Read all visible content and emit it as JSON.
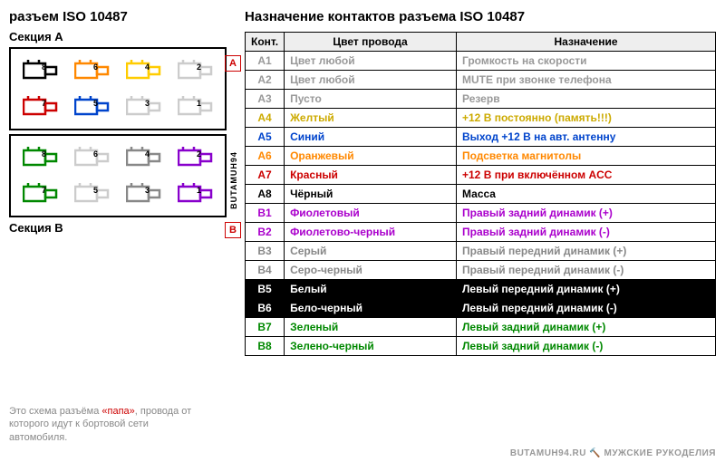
{
  "left_title": "разъем ISO 10487",
  "section_a_label": "Секция A",
  "section_b_label": "Секция B",
  "watermark_side": "BUTAMUH94",
  "watermark_bottom": "BUTAMUH94.RU 🔨 МУЖСКИЕ РУКОДЕЛИЯ",
  "footnote_pre": "Это схема разъёма ",
  "footnote_red": "«папа»",
  "footnote_post": ", провода от которого идут к бортовой сети автомобиля.",
  "right_title": "Назначение контактов разъема ISO 10487",
  "headers": {
    "pin": "Конт.",
    "color": "Цвет провода",
    "purpose": "Назначение"
  },
  "section_markers": {
    "a": "A",
    "b": "B"
  },
  "pins_a": [
    {
      "num": "8",
      "color": "#000000"
    },
    {
      "num": "6",
      "color": "#ff8800"
    },
    {
      "num": "4",
      "color": "#ffcc00"
    },
    {
      "num": "2",
      "color": "#cccccc"
    },
    {
      "num": "7",
      "color": "#cc0000"
    },
    {
      "num": "5",
      "color": "#0044cc"
    },
    {
      "num": "3",
      "color": "#cccccc"
    },
    {
      "num": "1",
      "color": "#cccccc"
    }
  ],
  "pins_b": [
    {
      "num": "8",
      "color": "#008800"
    },
    {
      "num": "6",
      "color": "#cccccc"
    },
    {
      "num": "4",
      "color": "#888888"
    },
    {
      "num": "2",
      "color": "#8800cc"
    },
    {
      "num": "7",
      "color": "#008800"
    },
    {
      "num": "5",
      "color": "#cccccc"
    },
    {
      "num": "3",
      "color": "#888888"
    },
    {
      "num": "1",
      "color": "#8800cc"
    }
  ],
  "rows": [
    {
      "pin": "A1",
      "color_text": "Цвет любой",
      "purpose": "Громкость на скорости",
      "text_color": "#999999",
      "bg": "#ffffff"
    },
    {
      "pin": "A2",
      "color_text": "Цвет любой",
      "purpose": "MUTE при звонке телефона",
      "text_color": "#999999",
      "bg": "#ffffff"
    },
    {
      "pin": "A3",
      "color_text": "Пусто",
      "purpose": "Резерв",
      "text_color": "#999999",
      "bg": "#ffffff"
    },
    {
      "pin": "A4",
      "color_text": "Желтый",
      "purpose": "+12 В постоянно (память!!!)",
      "text_color": "#ccaa00",
      "bg": "#ffffff"
    },
    {
      "pin": "A5",
      "color_text": "Синий",
      "purpose": "Выход +12 В на авт. антенну",
      "text_color": "#0044cc",
      "bg": "#ffffff"
    },
    {
      "pin": "A6",
      "color_text": "Оранжевый",
      "purpose": "Подсветка магнитолы",
      "text_color": "#ff8800",
      "bg": "#ffffff"
    },
    {
      "pin": "A7",
      "color_text": "Красный",
      "purpose": "+12 В при включённом ACC",
      "text_color": "#cc0000",
      "bg": "#ffffff"
    },
    {
      "pin": "A8",
      "color_text": "Чёрный",
      "purpose": "Масса",
      "text_color": "#000000",
      "bg": "#ffffff"
    },
    {
      "pin": "B1",
      "color_text": "Фиолетовый",
      "purpose": "Правый задний динамик (+)",
      "text_color": "#aa00cc",
      "bg": "#ffffff"
    },
    {
      "pin": "B2",
      "color_text": "Фиолетово-черный",
      "purpose": "Правый задний динамик (-)",
      "text_color": "#aa00cc",
      "bg": "#ffffff"
    },
    {
      "pin": "B3",
      "color_text": "Серый",
      "purpose": "Правый передний динамик (+)",
      "text_color": "#888888",
      "bg": "#ffffff"
    },
    {
      "pin": "B4",
      "color_text": "Серо-черный",
      "purpose": "Правый передний динамик (-)",
      "text_color": "#888888",
      "bg": "#ffffff"
    },
    {
      "pin": "B5",
      "color_text": "Белый",
      "purpose": "Левый передний динамик (+)",
      "text_color": "#ffffff",
      "bg": "#000000"
    },
    {
      "pin": "B6",
      "color_text": "Бело-черный",
      "purpose": "Левый передний динамик (-)",
      "text_color": "#ffffff",
      "bg": "#000000"
    },
    {
      "pin": "B7",
      "color_text": "Зеленый",
      "purpose": "Левый задний динамик (+)",
      "text_color": "#008800",
      "bg": "#ffffff"
    },
    {
      "pin": "B8",
      "color_text": "Зелено-черный",
      "purpose": "Левый задний динамик (-)",
      "text_color": "#008800",
      "bg": "#ffffff"
    }
  ]
}
